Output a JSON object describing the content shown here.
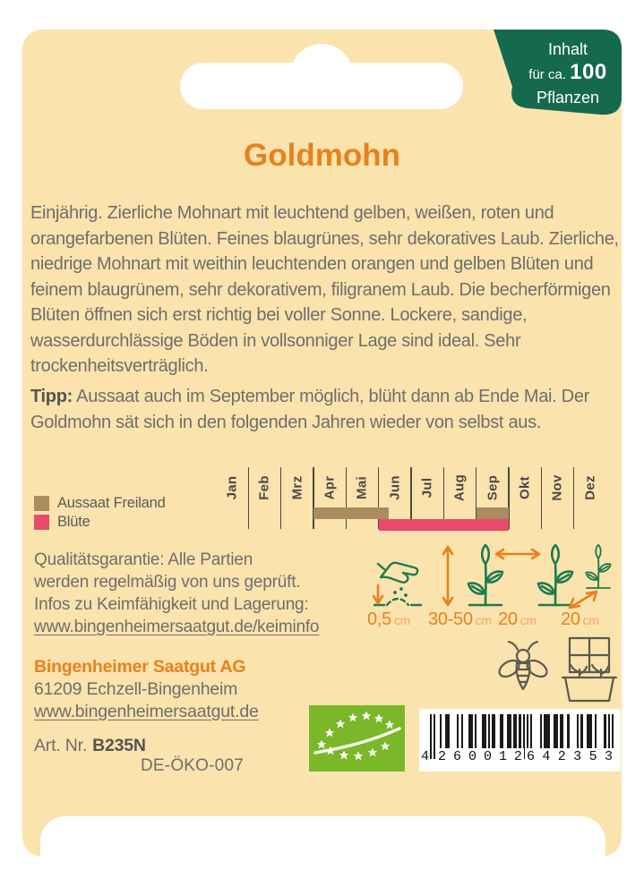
{
  "badge": {
    "line1": "Inhalt",
    "line2_prefix": "für ca.",
    "line2_number": "100",
    "line3": "Pflanzen"
  },
  "title": "Goldmohn",
  "description": "Einjährig. Zierliche Mohnart mit leuchtend gelben, weißen, roten und orangefarbenen Blüten. Feines blaugrünes, sehr dekoratives Laub. Zierliche, niedrige Mohnart mit weithin leuchtenden orangen und gelben Blüten und feinem blaugrünem, sehr dekorativem, filigranem Laub. Die becherförmigen Blüten öffnen sich erst richtig bei voller Sonne. Lockere, sandige, wasserdurchlässige Böden in vollsonniger Lage sind ideal. Sehr trockenheitsverträglich.",
  "tip": {
    "label": "Tipp:",
    "text": " Aussaat auch im September möglich, blüht dann ab Ende Mai. Der Goldmohn sät sich in den folgenden Jahren wieder von selbst aus."
  },
  "calendar": {
    "months": [
      "Jan",
      "Feb",
      "Mrz",
      "Apr",
      "Mai",
      "Jun",
      "Jul",
      "Aug",
      "Sep",
      "Okt",
      "Nov",
      "Dez"
    ],
    "legend": [
      {
        "label": "Aussaat Freiland",
        "color": "#ab8b60"
      },
      {
        "label": "Blüte",
        "color": "#e94a6c"
      }
    ],
    "bars": [
      {
        "series": "Aussaat Freiland",
        "row": 0,
        "start": 3.0,
        "end": 5.3,
        "color": "#ab8b60"
      },
      {
        "series": "Aussaat Freiland",
        "row": 0,
        "start": 8.0,
        "end": 9.0,
        "color": "#ab8b60"
      },
      {
        "series": "Blüte",
        "row": 1,
        "start": 5.0,
        "end": 9.0,
        "color": "#e94a6c"
      }
    ]
  },
  "quality": {
    "line1": "Qualitätsgarantie: Alle Partien",
    "line2": "werden regelmäßig von uns geprüft.",
    "line3": "Infos zu Keimfähigkeit und Lagerung:",
    "link": "www.bingenheimersaatgut.de/keiminfo"
  },
  "measurements": [
    {
      "icon": "sowing-depth-icon",
      "value": "0,5",
      "unit": "cm"
    },
    {
      "icon": "plant-height-icon",
      "value": "30-50",
      "unit": "cm"
    },
    {
      "icon": "plant-spacing-icon",
      "value": "20",
      "unit": "cm"
    },
    {
      "icon": "row-spacing-icon",
      "value": "20",
      "unit": "cm"
    }
  ],
  "publisher": {
    "name": "Bingenheimer Saatgut AG",
    "address": "61209 Echzell-Bingenheim",
    "website": "www.bingenheimersaatgut.de"
  },
  "article": {
    "label": "Art. Nr.",
    "number": "B235N",
    "eco_code": "DE-ÖKO-007"
  },
  "barcode": {
    "digits": "4 260012 642353"
  },
  "colors": {
    "background": "#fbe3ae",
    "badge_green": "#15694f",
    "accent_orange": "#e8811c",
    "text_gray": "#6f6e6a",
    "sowing_brown": "#ab8b60",
    "bloom_pink": "#e94a6c",
    "plant_green": "#1e7b4e",
    "eu_logo_green": "#7ab829"
  }
}
